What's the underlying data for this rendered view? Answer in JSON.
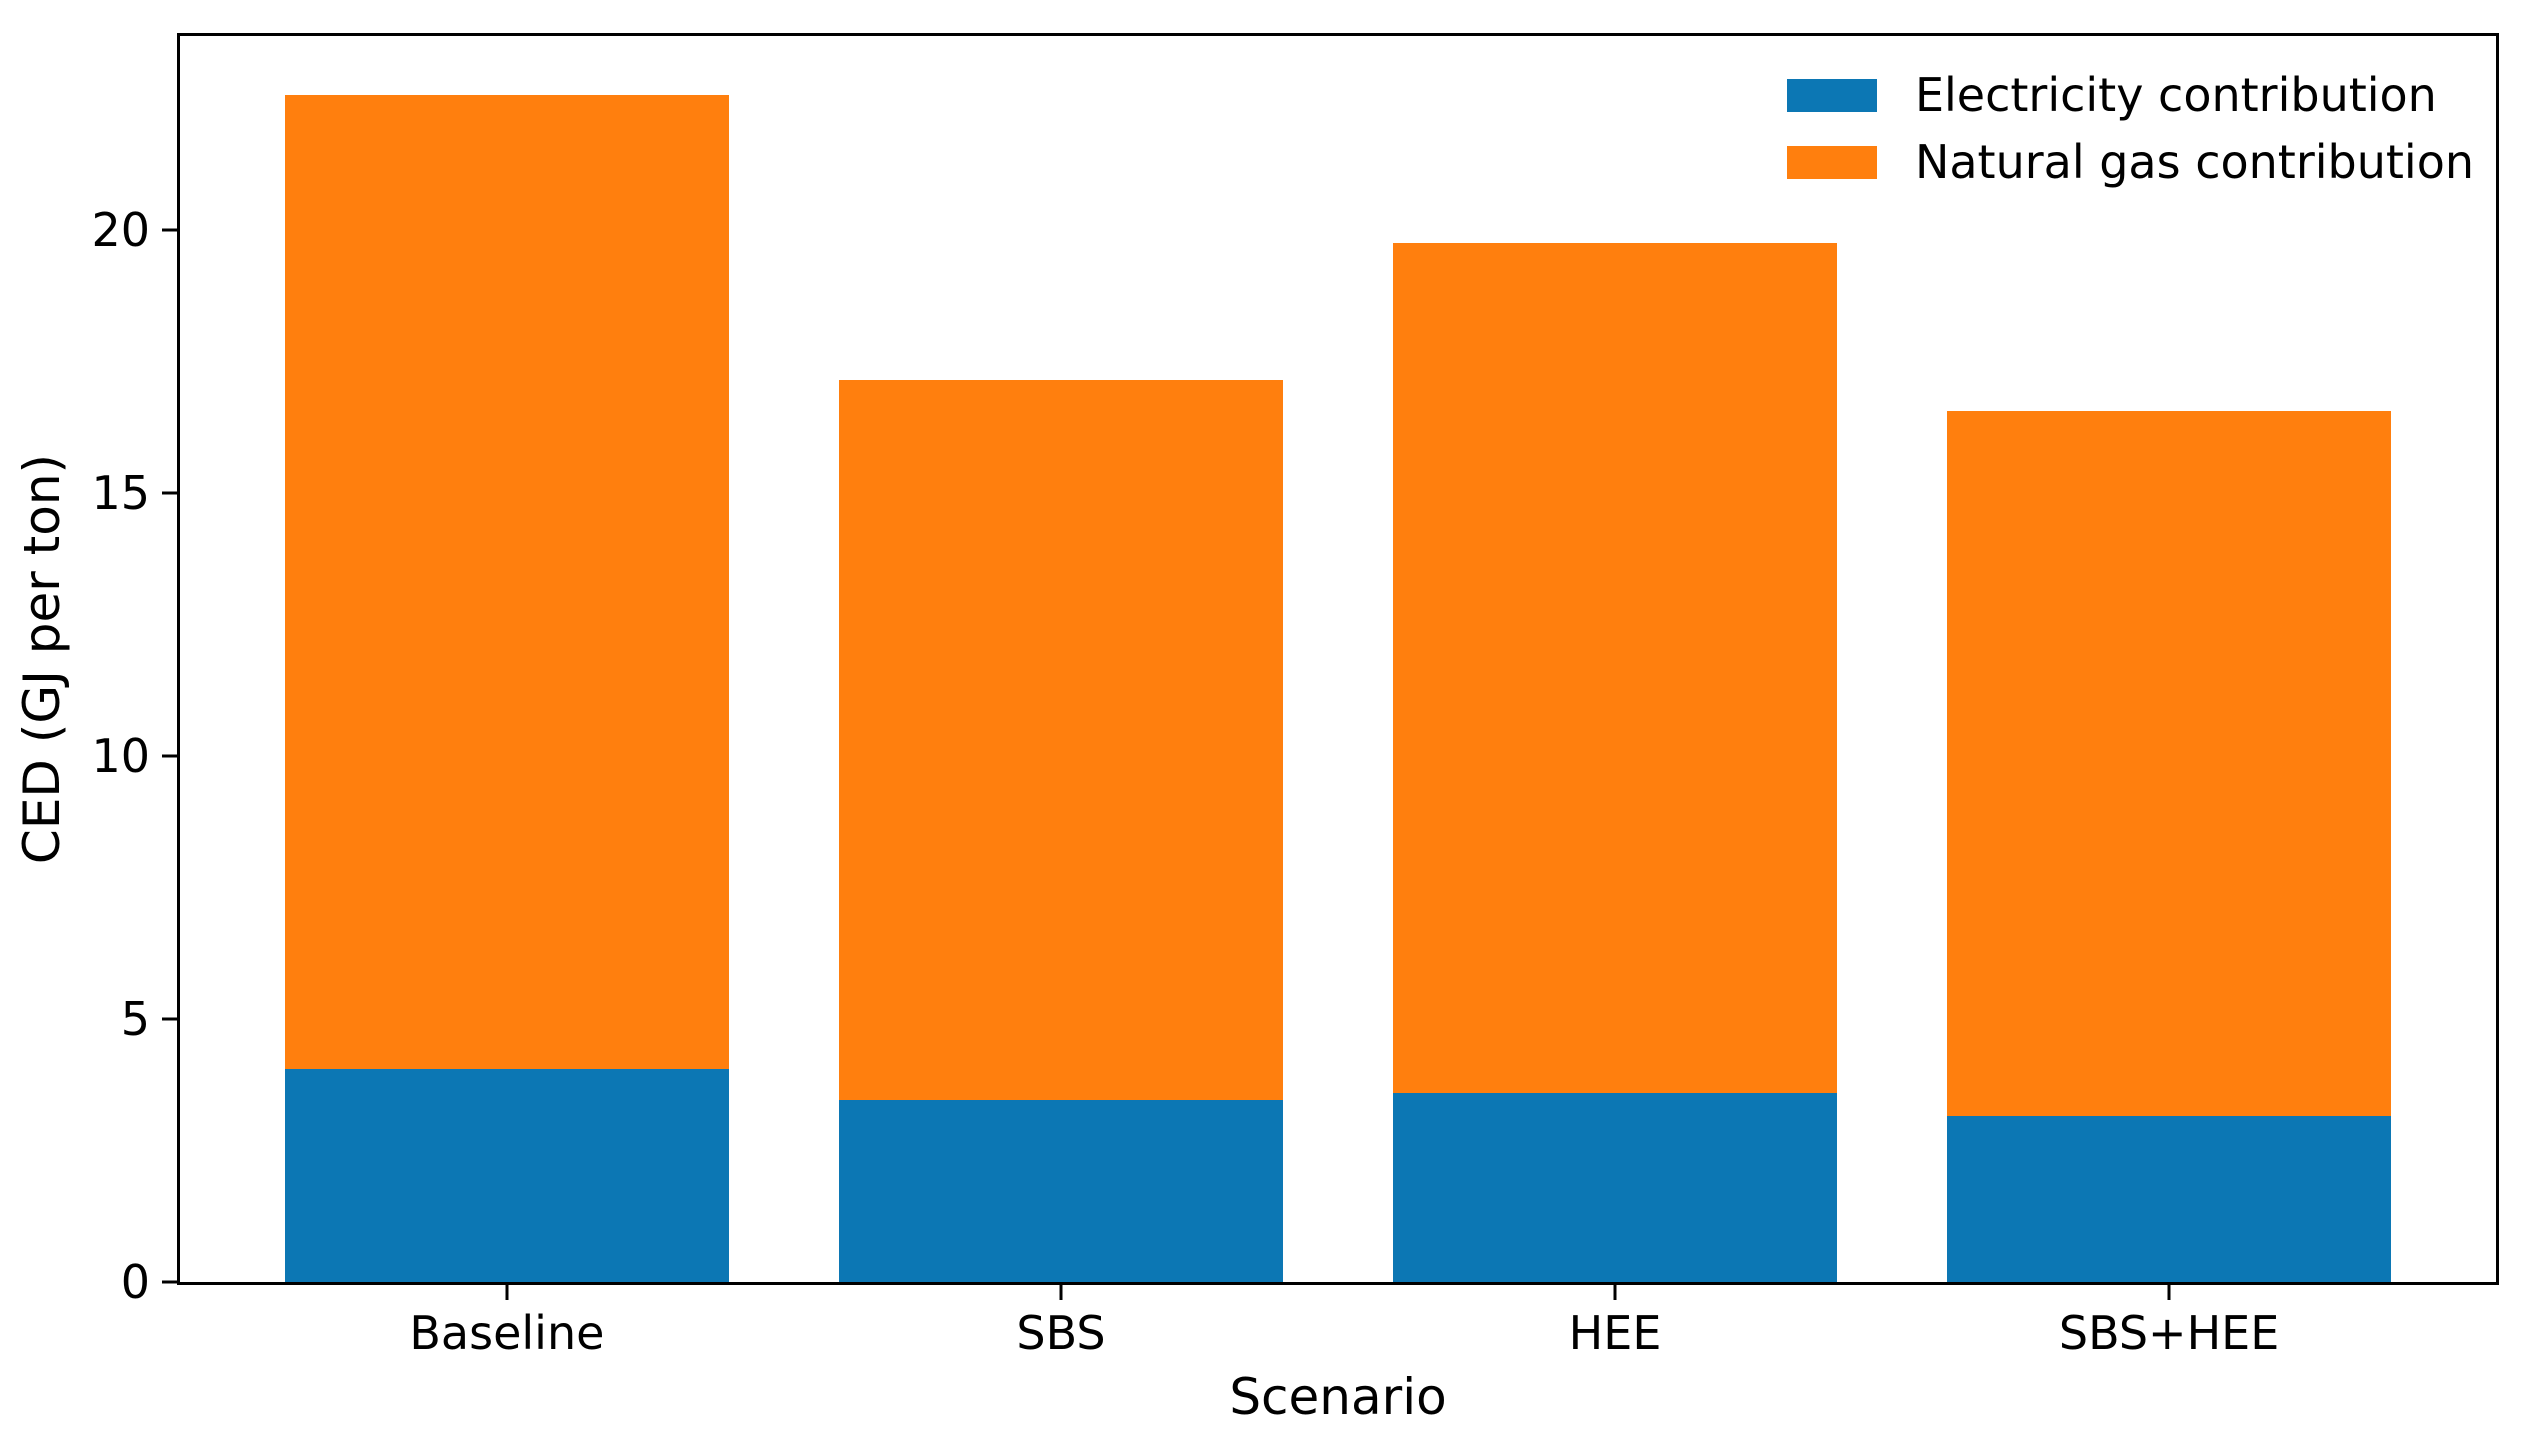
{
  "figure": {
    "background": "#ffffff",
    "spine_color": "#000000"
  },
  "chart_data": {
    "type": "bar",
    "stacked": true,
    "title": "",
    "xlabel": "Scenario",
    "ylabel": "CED (GJ per ton)",
    "categories": [
      "Baseline",
      "SBS",
      "HEE",
      "SBS+HEE"
    ],
    "series": [
      {
        "name": "Electricity contribution",
        "color": "#0c77b4",
        "values": [
          4.05,
          3.45,
          3.6,
          3.15
        ]
      },
      {
        "name": "Natural gas contribution",
        "color": "#ff7f0e",
        "values": [
          18.5,
          13.7,
          16.15,
          13.4
        ]
      }
    ],
    "totals": [
      22.55,
      17.15,
      19.75,
      16.55
    ],
    "yticks": [
      0,
      5,
      10,
      15,
      20
    ],
    "ylim": [
      0,
      23.68
    ],
    "x_range": [
      -0.59,
      3.59
    ],
    "bar_width_fraction": 0.8,
    "grid": false,
    "legend_position": "upper-right",
    "legend_frame": false
  }
}
